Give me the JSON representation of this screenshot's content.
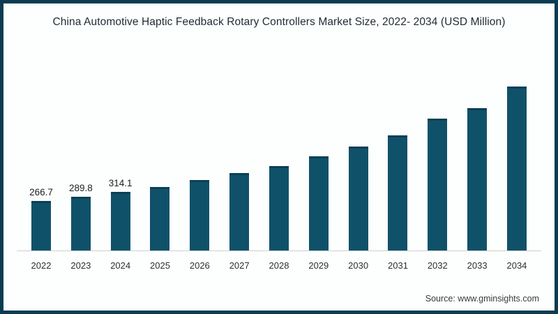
{
  "source_label": "Source: www.gminsights.com",
  "colors": {
    "bar": "#10516a",
    "bar_cap": "#0a4055",
    "frame_border": "#0b3c52",
    "axis_line": "#cfcfcf",
    "title_text": "#1f2a33"
  },
  "chart_data": {
    "type": "bar",
    "title": "China Automotive Haptic Feedback Rotary Controllers Market Size, 2022- 2034 (USD Million)",
    "unit": "USD Million",
    "categories": [
      "2022",
      "2023",
      "2024",
      "2025",
      "2026",
      "2027",
      "2028",
      "2029",
      "2030",
      "2031",
      "2032",
      "2033",
      "2034"
    ],
    "values": [
      266.7,
      289.8,
      314.1,
      340,
      376,
      414,
      451,
      503,
      555,
      614,
      703,
      758,
      873
    ],
    "data_labels": [
      "266.7",
      "289.8",
      "314.1",
      "",
      "",
      "",
      "",
      "",
      "",
      "",
      "",
      "",
      ""
    ],
    "xlabel": "",
    "ylabel": "",
    "ylim": [
      0,
      900
    ],
    "grid": false,
    "legend": false,
    "bar_color": "#10516a",
    "notes": "values for 2025-2034 estimated from bar heights; only first three bars carry data labels"
  }
}
